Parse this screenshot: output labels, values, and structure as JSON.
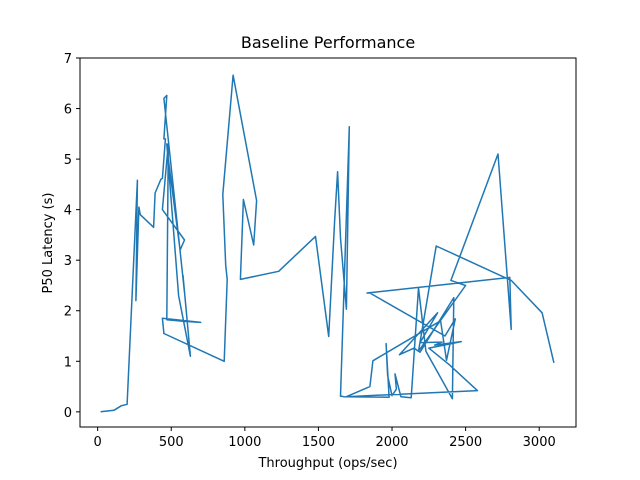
{
  "chart_data": {
    "type": "line",
    "title": "Baseline Performance",
    "xlabel": "Throughput (ops/sec)",
    "ylabel": "P50 Latency (s)",
    "xlim": [
      -120,
      3250
    ],
    "ylim": [
      -0.3,
      7
    ],
    "xticks": [
      0,
      500,
      1000,
      1500,
      2000,
      2500,
      3000
    ],
    "yticks": [
      0,
      1,
      2,
      3,
      4,
      5,
      6,
      7
    ],
    "grid": false,
    "legend": "none",
    "series": [
      {
        "color": "#1f77b4",
        "x": [
          20,
          110,
          160,
          200,
          270,
          260,
          280,
          290,
          380,
          390,
          430,
          440,
          460,
          450,
          470,
          450,
          590,
          580,
          630,
          550,
          470,
          480,
          560,
          590,
          440,
          480,
          470,
          590,
          700,
          440,
          450,
          860,
          880,
          870,
          850,
          920,
          1080,
          1060,
          990,
          970,
          1230,
          1480,
          1570,
          1610,
          1630,
          1650,
          1690,
          1710,
          1650,
          1660,
          1670,
          1980,
          1960,
          1970,
          2000,
          2030,
          2020,
          2060,
          2130,
          2180,
          2230,
          2410,
          2420,
          2190,
          2150,
          2050,
          2310,
          2190,
          2340,
          2290,
          2470,
          2370,
          2250,
          2390,
          2580,
          1690,
          1850,
          1870,
          2330,
          2370,
          2430,
          2360,
          1850,
          1830,
          2800,
          2810,
          2720,
          2400,
          2500,
          2180,
          2300,
          2810,
          3020,
          3100
        ],
        "y": [
          0.0,
          0.03,
          0.12,
          0.15,
          4.58,
          2.2,
          4.05,
          3.9,
          3.65,
          4.33,
          4.6,
          4.62,
          5.4,
          5.4,
          6.26,
          6.2,
          2.36,
          2.7,
          1.1,
          2.3,
          5.3,
          5.0,
          3.2,
          3.4,
          4.0,
          5.3,
          1.82,
          1.79,
          1.77,
          1.85,
          1.55,
          1.0,
          2.62,
          2.9,
          4.3,
          6.66,
          4.18,
          3.3,
          4.2,
          2.62,
          2.78,
          3.47,
          1.49,
          3.77,
          4.75,
          3.44,
          2.03,
          5.64,
          0.31,
          0.31,
          0.3,
          0.29,
          1.35,
          0.72,
          0.32,
          0.45,
          0.75,
          0.3,
          0.28,
          2.45,
          1.2,
          0.26,
          2.26,
          1.18,
          1.26,
          1.13,
          1.96,
          1.37,
          1.38,
          1.32,
          1.39,
          1.33,
          1.26,
          0.93,
          0.42,
          0.3,
          0.5,
          1.01,
          1.8,
          1.02,
          1.84,
          1.5,
          2.35,
          2.35,
          2.66,
          1.63,
          5.1,
          2.6,
          2.5,
          1.2,
          3.28,
          2.6,
          1.96,
          0.97
        ]
      }
    ]
  }
}
